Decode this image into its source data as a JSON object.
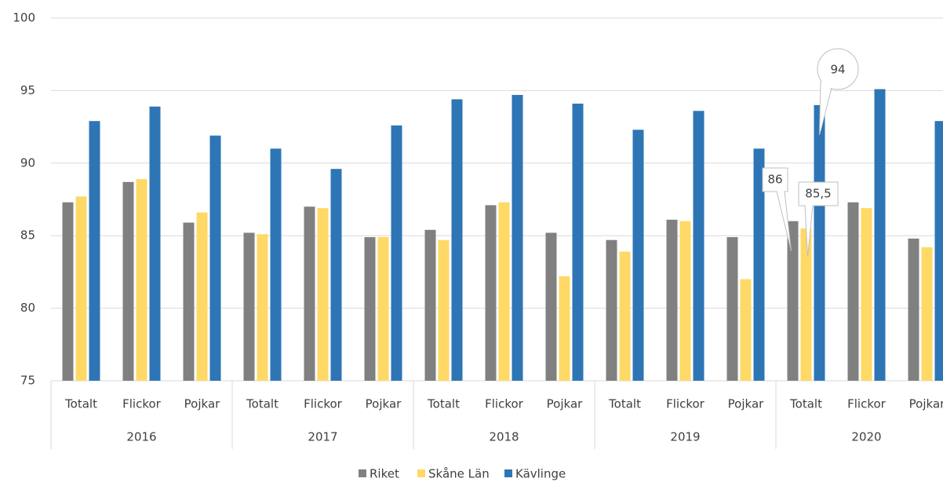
{
  "chart_data": {
    "type": "bar",
    "categories": [
      "Totalt",
      "Flickor",
      "Pojkar",
      "Totalt",
      "Flickor",
      "Pojkar",
      "Totalt",
      "Flickor",
      "Pojkar",
      "Totalt",
      "Flickor",
      "Pojkar",
      "Totalt",
      "Flickor",
      "Pojkar"
    ],
    "category_groups": [
      "2016",
      "2017",
      "2018",
      "2019",
      "2020"
    ],
    "series": [
      {
        "name": "Riket",
        "color": "#808080",
        "values": [
          87.3,
          88.7,
          85.9,
          85.2,
          87.0,
          84.9,
          85.4,
          87.1,
          85.2,
          84.7,
          86.1,
          84.9,
          86,
          87.3,
          84.8
        ],
        "value_labels": [
          null,
          null,
          null,
          null,
          null,
          null,
          null,
          null,
          null,
          null,
          null,
          null,
          "86",
          null,
          null
        ]
      },
      {
        "name": "Skåne Län",
        "color": "#ffd966",
        "values": [
          87.7,
          88.9,
          86.6,
          85.1,
          86.9,
          84.9,
          84.7,
          87.3,
          82.2,
          83.9,
          86.0,
          82.0,
          85.5,
          86.9,
          84.2
        ],
        "value_labels": [
          null,
          null,
          null,
          null,
          null,
          null,
          null,
          null,
          null,
          null,
          null,
          null,
          "85,5",
          null,
          null
        ]
      },
      {
        "name": "Kävlinge",
        "color": "#2e75b6",
        "values": [
          92.9,
          93.9,
          91.9,
          91.0,
          89.6,
          92.6,
          94.4,
          94.7,
          94.1,
          92.3,
          93.6,
          91.0,
          94,
          95.1,
          92.9
        ],
        "value_labels": [
          null,
          null,
          null,
          null,
          null,
          null,
          null,
          null,
          null,
          null,
          null,
          null,
          "94",
          null,
          null
        ]
      }
    ],
    "ylim": [
      75,
      100
    ],
    "yticks": [
      75,
      80,
      85,
      90,
      95,
      100
    ],
    "grid": true,
    "legend": "bottom"
  }
}
